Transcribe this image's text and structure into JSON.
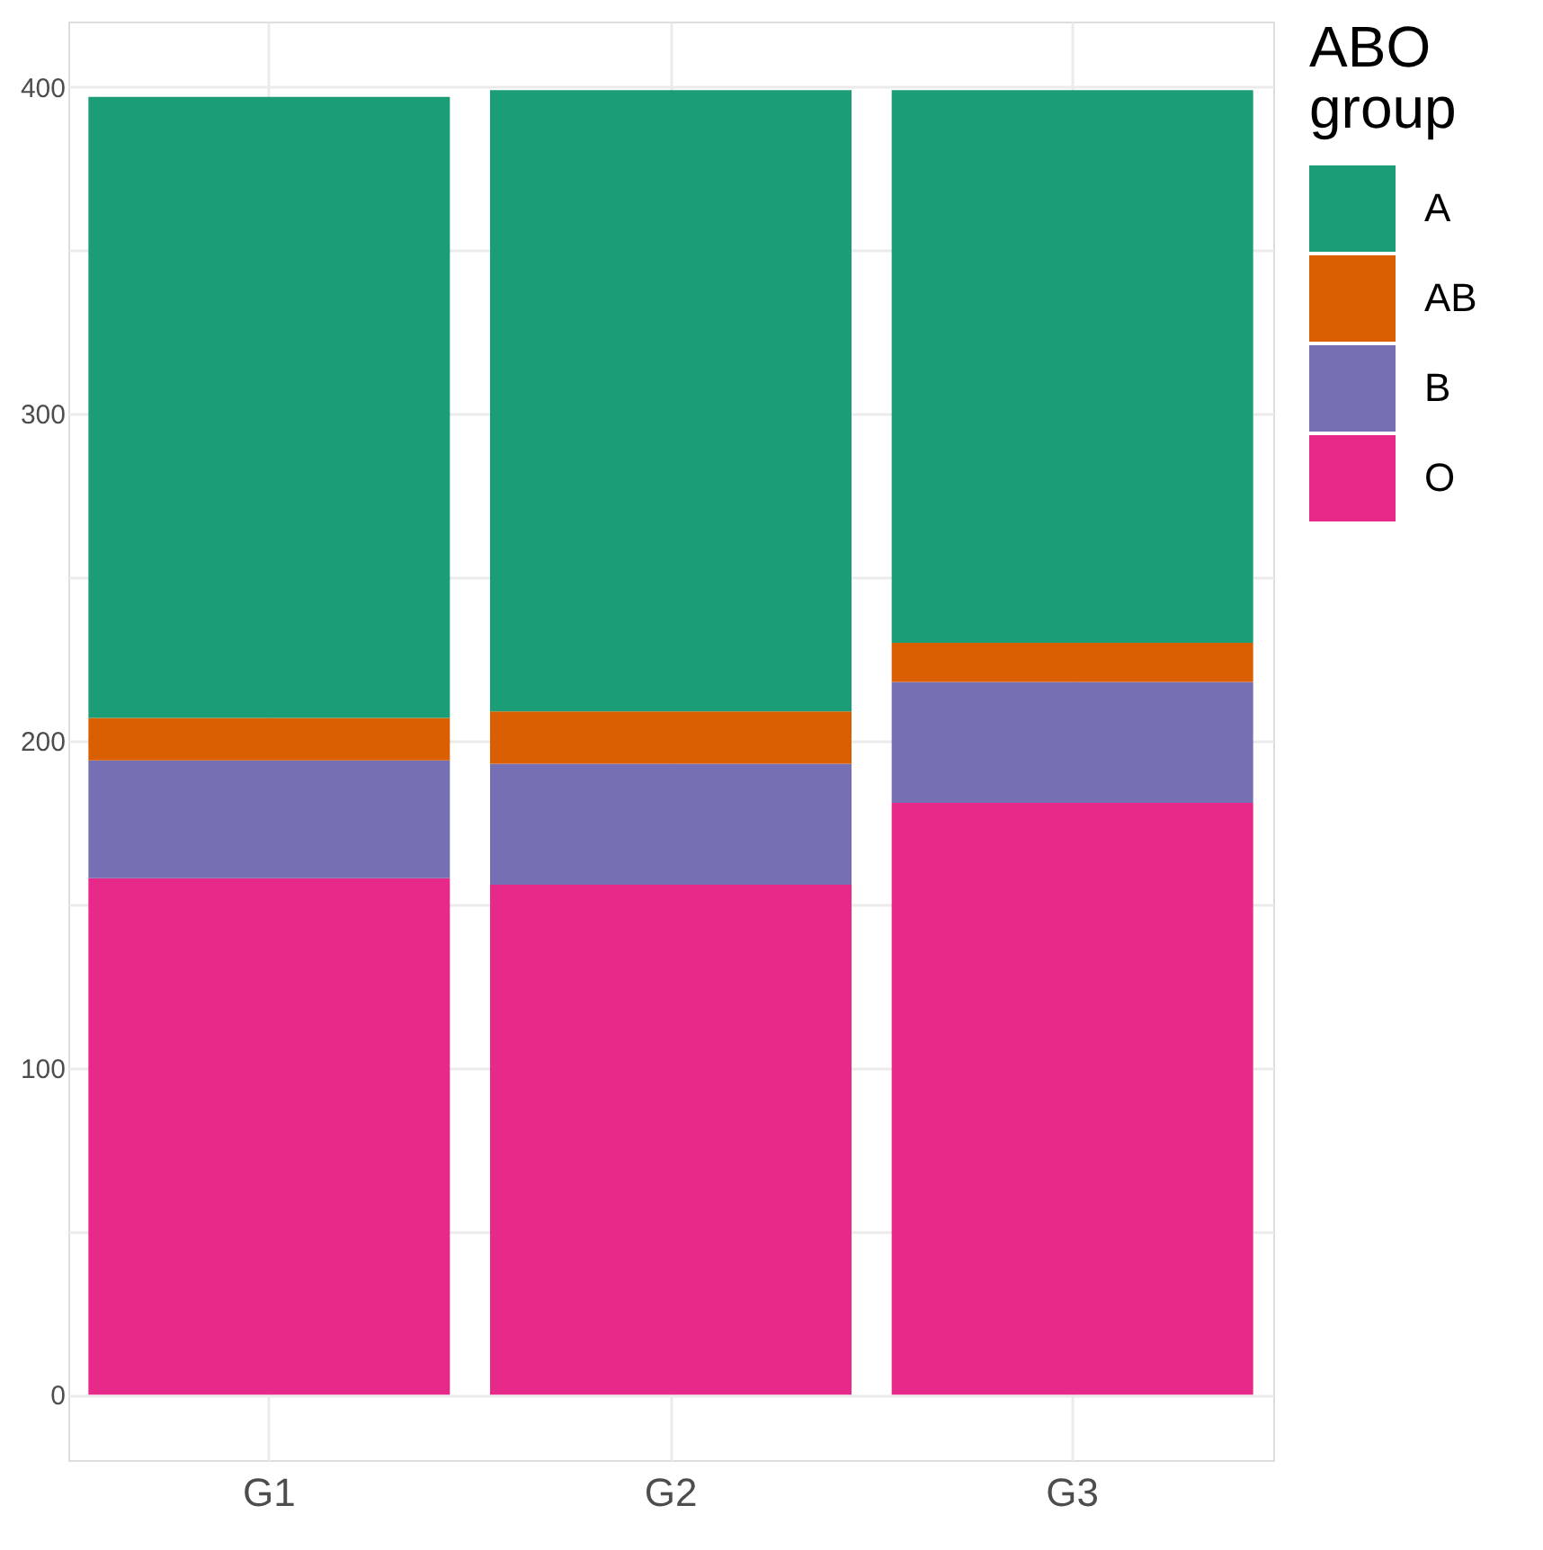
{
  "chart_data": {
    "type": "bar",
    "stacked": true,
    "categories": [
      "G1",
      "G2",
      "G3"
    ],
    "series": [
      {
        "name": "O",
        "color": "#e7298a",
        "values": [
          158,
          156,
          181
        ]
      },
      {
        "name": "B",
        "color": "#7570b3",
        "values": [
          36,
          37,
          37
        ]
      },
      {
        "name": "AB",
        "color": "#d95f02",
        "values": [
          13,
          16,
          12
        ]
      },
      {
        "name": "A",
        "color": "#1b9e77",
        "values": [
          190,
          190,
          169
        ]
      }
    ],
    "legend_title": "ABO\ngroup",
    "legend": "right",
    "grid": true,
    "ylim": [
      -20,
      420
    ],
    "yticks": [
      0,
      {
        "value": 50,
        "label": null
      },
      100,
      {
        "value": 150,
        "label": null
      },
      200,
      {
        "value": 250,
        "label": null
      },
      300,
      {
        "value": 350,
        "label": null
      },
      400
    ]
  }
}
